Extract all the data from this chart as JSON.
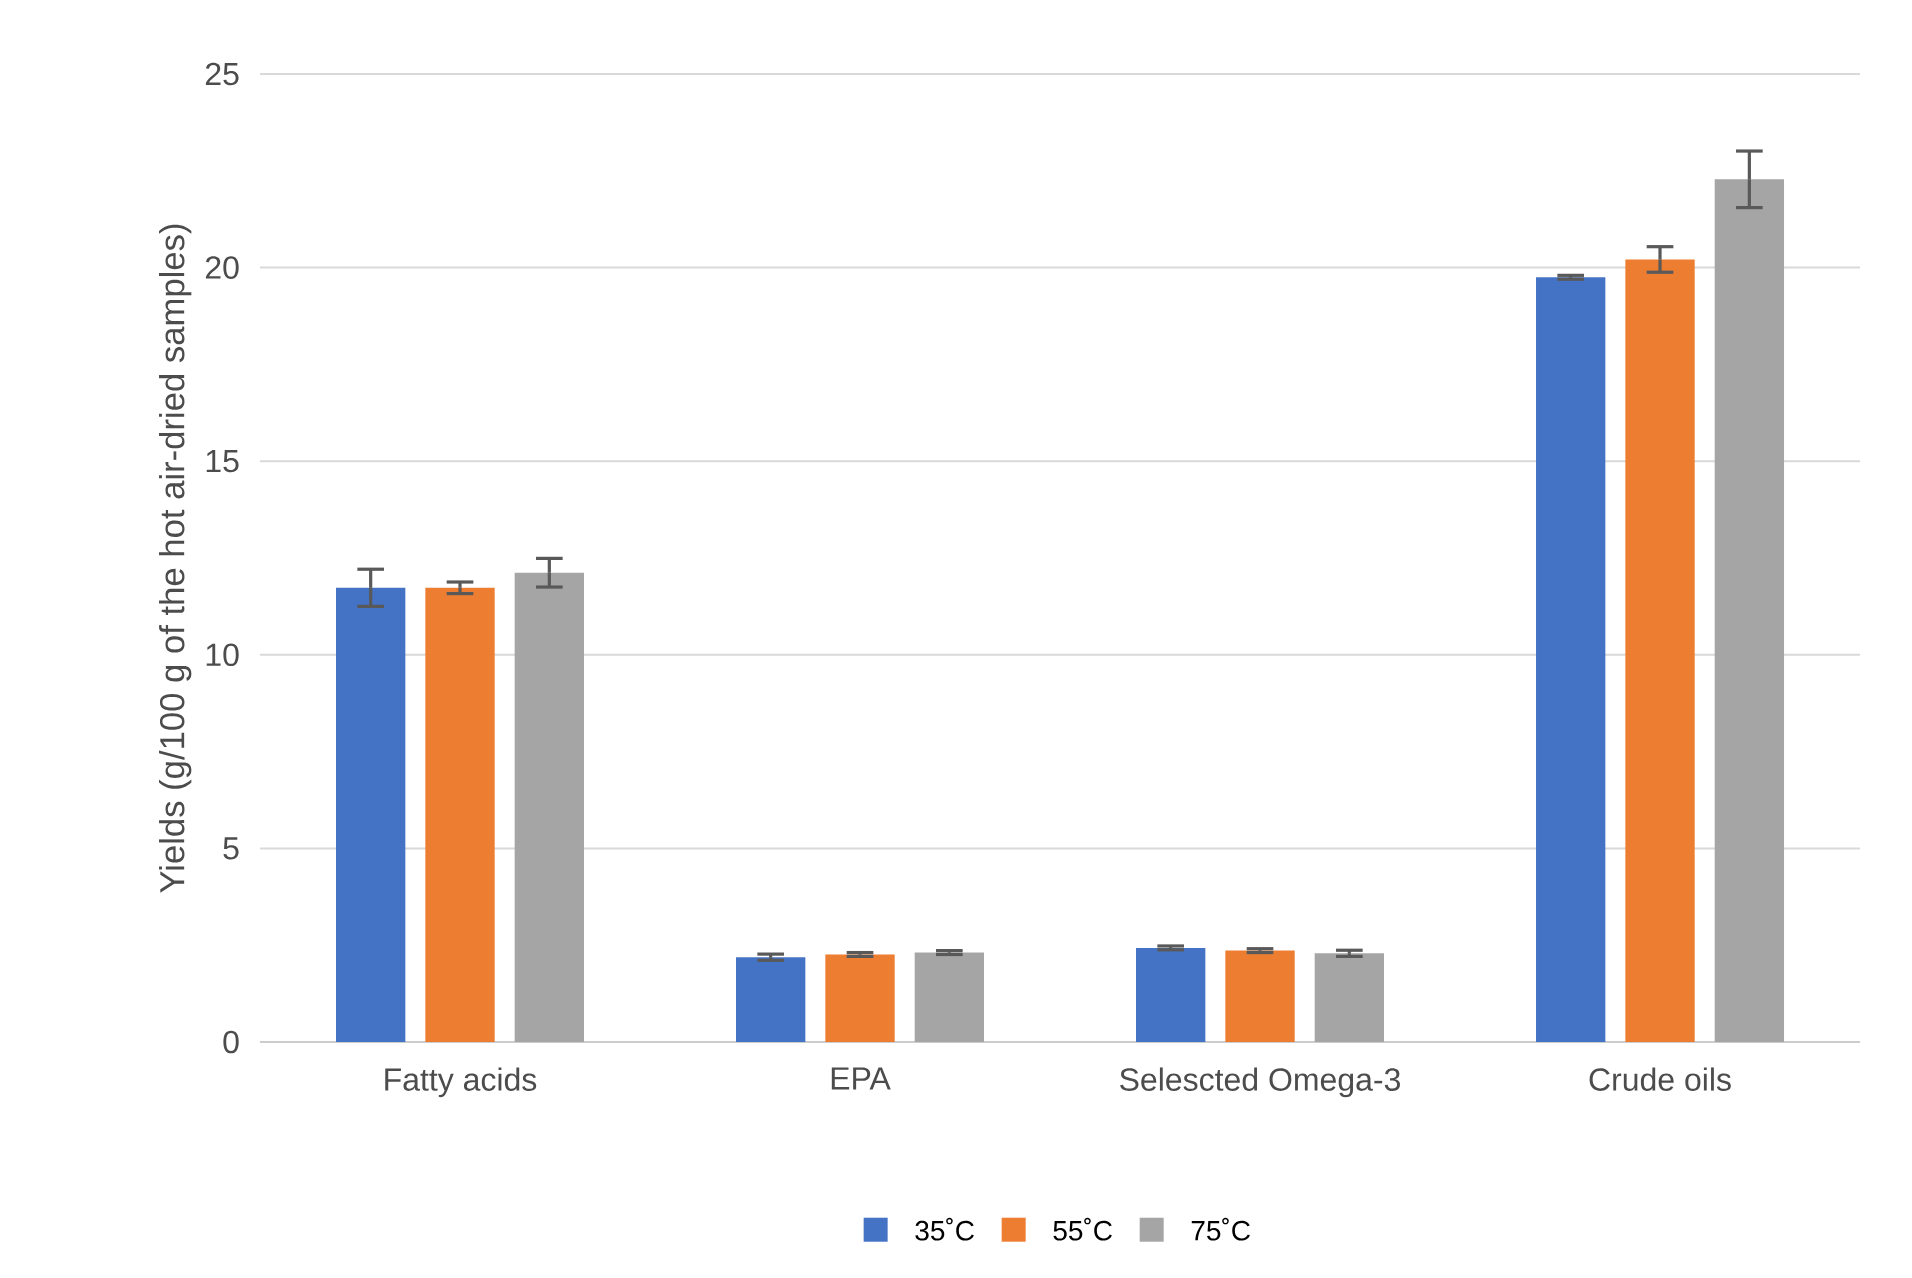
{
  "chart_data": {
    "type": "bar",
    "ylabel": "Yields (g/100 g of the hot air-dried samples)",
    "categories": [
      "Fatty acids",
      "EPA",
      "Selescted Omega-3",
      "Crude oils"
    ],
    "series": [
      {
        "name": "35˚C",
        "color": "#4472c4",
        "values": [
          11.73,
          2.19,
          2.43,
          19.75
        ],
        "errors": [
          0.48,
          0.08,
          0.05,
          0.05
        ]
      },
      {
        "name": "55˚C",
        "color": "#ed7d31",
        "values": [
          11.73,
          2.26,
          2.36,
          20.21
        ],
        "errors": [
          0.15,
          0.05,
          0.05,
          0.33
        ]
      },
      {
        "name": "75˚C",
        "color": "#a5a5a5",
        "values": [
          12.12,
          2.31,
          2.29,
          22.28
        ],
        "errors": [
          0.37,
          0.05,
          0.08,
          0.73
        ]
      }
    ],
    "ylim": [
      0,
      25
    ],
    "yticks": [
      0,
      5,
      10,
      15,
      20,
      25
    ],
    "grid": "y",
    "legend": "bottom"
  }
}
